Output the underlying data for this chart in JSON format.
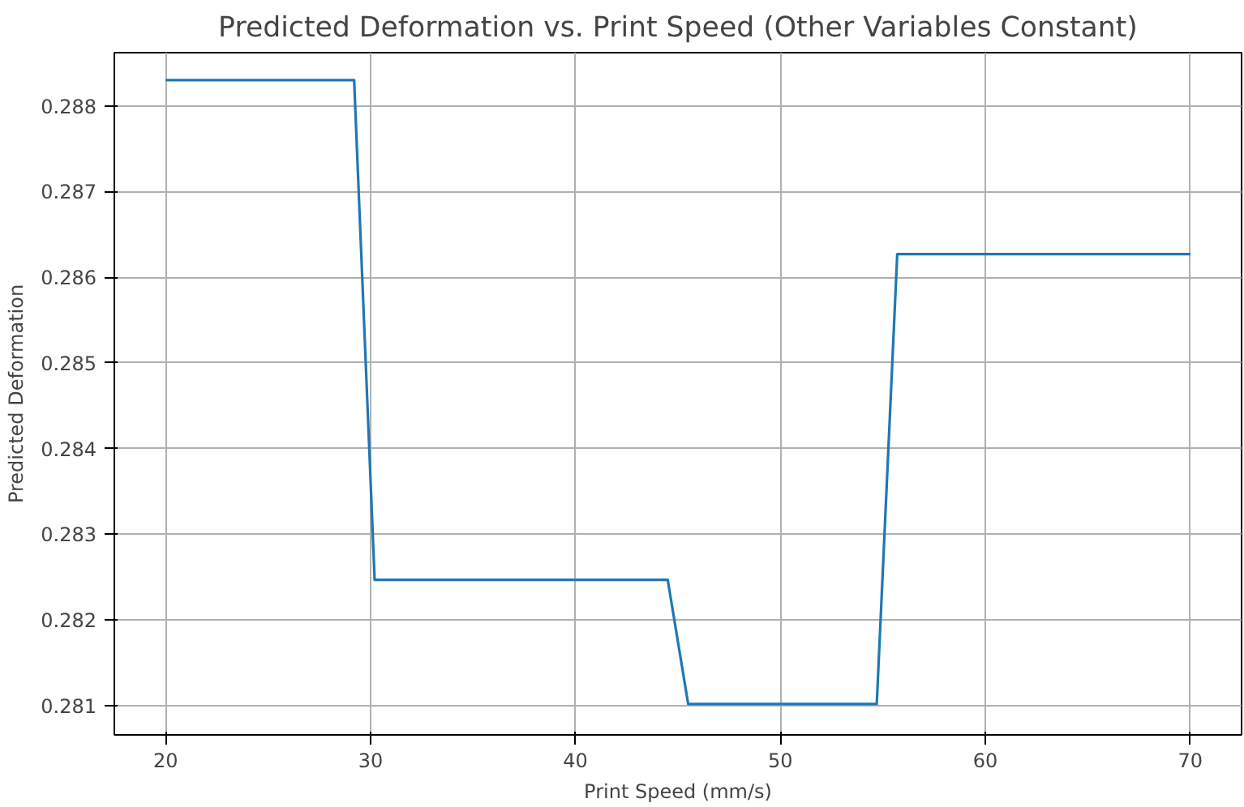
{
  "chart_data": {
    "type": "line",
    "title": "Predicted Deformation vs. Print Speed (Other Variables Constant)",
    "xlabel": "Print Speed (mm/s)",
    "ylabel": "Predicted Deformation",
    "x": [
      20,
      29.2,
      30.2,
      44.5,
      45.5,
      54.7,
      55.7,
      70
    ],
    "series": [
      {
        "color": "#1f77b4",
        "values": [
          0.2883,
          0.2883,
          0.28247,
          0.28247,
          0.28102,
          0.28102,
          0.28627,
          0.28627
        ]
      }
    ],
    "xlim": [
      17.5,
      72.5
    ],
    "ylim": [
      0.28066,
      0.28862
    ],
    "xticks": [
      20,
      30,
      40,
      50,
      60,
      70
    ],
    "yticks": [
      {
        "value": 0.281,
        "label": "0.281"
      },
      {
        "value": 0.282,
        "label": "0.282"
      },
      {
        "value": 0.283,
        "label": "0.283"
      },
      {
        "value": 0.284,
        "label": "0.284"
      },
      {
        "value": 0.285,
        "label": "0.285"
      },
      {
        "value": 0.286,
        "label": "0.286"
      },
      {
        "value": 0.287,
        "label": "0.287"
      },
      {
        "value": 0.288,
        "label": "0.288"
      }
    ],
    "grid": true,
    "marker": "none",
    "line_style": "solid"
  }
}
